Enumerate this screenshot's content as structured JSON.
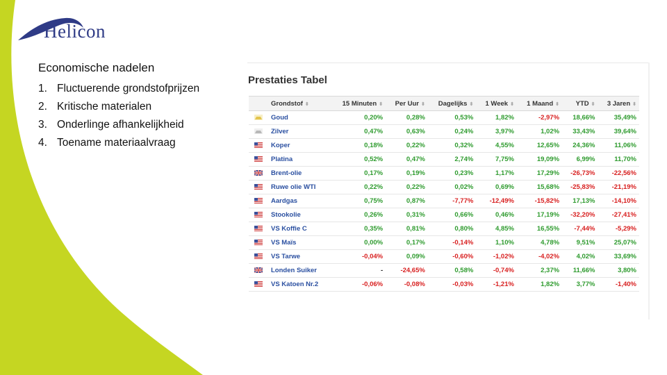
{
  "logo": {
    "text": "Helicon"
  },
  "slide": {
    "title": "Economische nadelen",
    "items": [
      {
        "num": "1.",
        "text": "Fluctuerende grondstofprijzen"
      },
      {
        "num": "2.",
        "text": "Kritische materialen"
      },
      {
        "num": "3.",
        "text": "Onderlinge afhankelijkheid"
      },
      {
        "num": "4.",
        "text": "Toename materiaalvraag"
      }
    ]
  },
  "table": {
    "title": "Prestaties Tabel",
    "columns": [
      "Grondstof",
      "15 Minuten",
      "Per Uur",
      "Dagelijks",
      "1 Week",
      "1 Maand",
      "YTD",
      "3 Jaren"
    ],
    "rows": [
      {
        "flag": "gold",
        "name": "Goud",
        "values": [
          "0,20%",
          "0,28%",
          "0,53%",
          "1,82%",
          "-2,97%",
          "18,66%",
          "35,49%"
        ]
      },
      {
        "flag": "silver",
        "name": "Zilver",
        "values": [
          "0,47%",
          "0,63%",
          "0,24%",
          "3,97%",
          "1,02%",
          "33,43%",
          "39,64%"
        ]
      },
      {
        "flag": "us",
        "name": "Koper",
        "values": [
          "0,18%",
          "0,22%",
          "0,32%",
          "4,55%",
          "12,65%",
          "24,36%",
          "11,06%"
        ]
      },
      {
        "flag": "us",
        "name": "Platina",
        "values": [
          "0,52%",
          "0,47%",
          "2,74%",
          "7,75%",
          "19,09%",
          "6,99%",
          "11,70%"
        ]
      },
      {
        "flag": "uk",
        "name": "Brent-olie",
        "values": [
          "0,17%",
          "0,19%",
          "0,23%",
          "1,17%",
          "17,29%",
          "-26,73%",
          "-22,56%"
        ]
      },
      {
        "flag": "us",
        "name": "Ruwe olie WTI",
        "values": [
          "0,22%",
          "0,22%",
          "0,02%",
          "0,69%",
          "15,68%",
          "-25,83%",
          "-21,19%"
        ]
      },
      {
        "flag": "us",
        "name": "Aardgas",
        "values": [
          "0,75%",
          "0,87%",
          "-7,77%",
          "-12,49%",
          "-15,82%",
          "17,13%",
          "-14,10%"
        ]
      },
      {
        "flag": "us",
        "name": "Stookolie",
        "values": [
          "0,26%",
          "0,31%",
          "0,66%",
          "0,46%",
          "17,19%",
          "-32,20%",
          "-27,41%"
        ]
      },
      {
        "flag": "us",
        "name": "VS Koffie C",
        "values": [
          "0,35%",
          "0,81%",
          "0,80%",
          "4,85%",
          "16,55%",
          "-7,44%",
          "-5,29%"
        ]
      },
      {
        "flag": "us",
        "name": "VS Maïs",
        "values": [
          "0,00%",
          "0,17%",
          "-0,14%",
          "1,10%",
          "4,78%",
          "9,51%",
          "25,07%"
        ]
      },
      {
        "flag": "us",
        "name": "VS Tarwe",
        "values": [
          "-0,04%",
          "0,09%",
          "-0,60%",
          "-1,02%",
          "-4,02%",
          "4,02%",
          "33,69%"
        ]
      },
      {
        "flag": "uk",
        "name": "Londen Suiker",
        "values": [
          "-",
          "-24,65%",
          "0,58%",
          "-0,74%",
          "2,37%",
          "11,66%",
          "3,80%"
        ]
      },
      {
        "flag": "us",
        "name": "VS Katoen Nr.2",
        "values": [
          "-0,06%",
          "-0,08%",
          "-0,03%",
          "-1,21%",
          "1,82%",
          "3,77%",
          "-1,40%"
        ]
      }
    ]
  },
  "colors": {
    "positive": "#2e9b2e",
    "negative": "#d81f1f",
    "brand": "#2f3b86",
    "accent": "#c5d622"
  }
}
